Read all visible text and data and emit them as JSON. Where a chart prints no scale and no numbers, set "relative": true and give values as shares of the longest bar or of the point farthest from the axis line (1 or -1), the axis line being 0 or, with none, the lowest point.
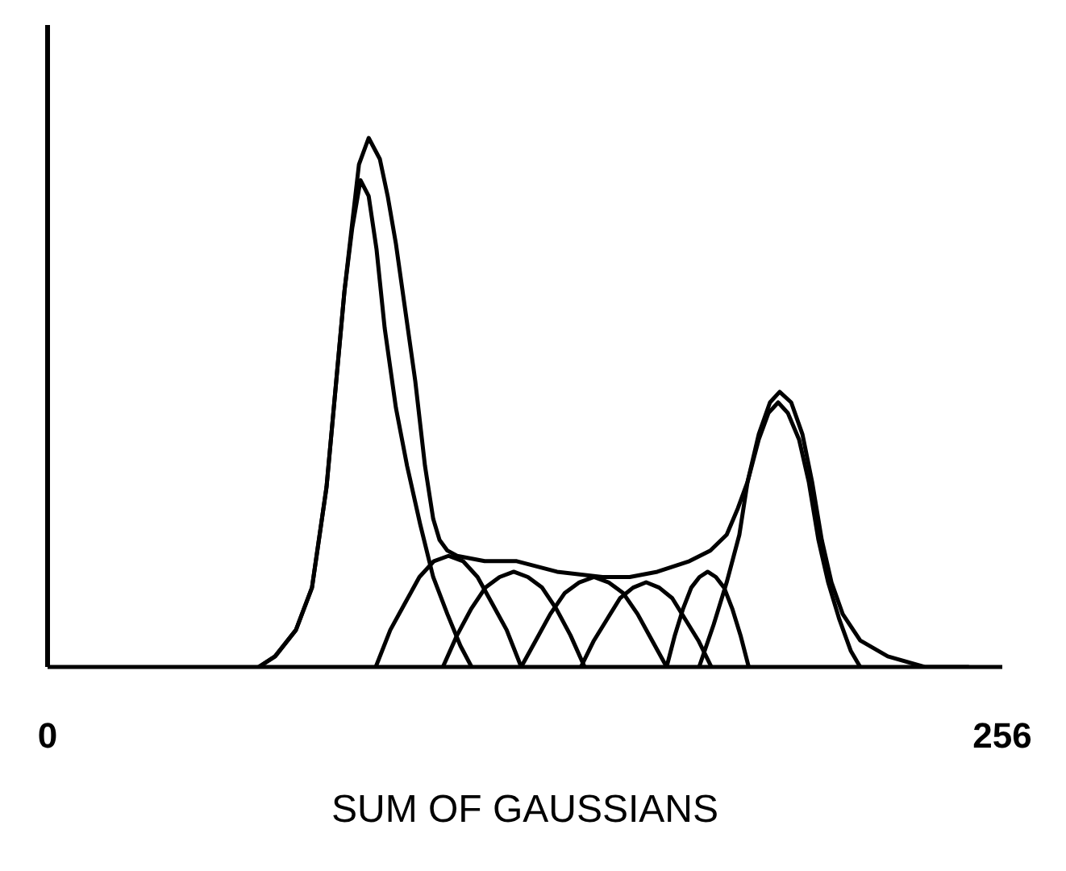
{
  "chart_data": {
    "type": "line",
    "title": "SUM OF GAUSSIANS",
    "relative": true,
    "xlim": [
      0,
      256
    ],
    "xticks": [
      0,
      256
    ],
    "series": [
      {
        "color": "#000000",
        "x": [
          56.6,
          61.0,
          66.6,
          70.9,
          74.8,
          77.4,
          79.6,
          81.7,
          83.5,
          86.1,
          89.1,
          91.2,
          93.4,
          95.6,
          98.6,
          101.2,
          103.4,
          105.1,
          107.2,
          109.8,
          117.2,
          125.8,
          136.6,
          148.8,
          156.1,
          163.5,
          172.1,
          177.7,
          182.1,
          185.1,
          187.7,
          190.7,
          193.7,
          196.3,
          199.4,
          202.4,
          205.0,
          207.6,
          210.2,
          213.2,
          217.9,
          225.3,
          235.2,
          246.9
        ],
        "values": [
          0,
          0.02,
          0.07,
          0.15,
          0.34,
          0.54,
          0.71,
          0.84,
          0.95,
          1.0,
          0.96,
          0.89,
          0.8,
          0.69,
          0.54,
          0.38,
          0.28,
          0.24,
          0.22,
          0.21,
          0.2,
          0.2,
          0.18,
          0.17,
          0.17,
          0.18,
          0.2,
          0.22,
          0.25,
          0.3,
          0.35,
          0.44,
          0.5,
          0.52,
          0.5,
          0.44,
          0.35,
          0.24,
          0.16,
          0.1,
          0.05,
          0.02,
          0.0,
          0
        ]
      },
      {
        "color": "#000000",
        "x": [
          56.6,
          61.0,
          66.6,
          70.9,
          74.8,
          77.4,
          79.6,
          81.7,
          83.9,
          86.1,
          88.2,
          90.4,
          93.4,
          96.4,
          99.9,
          103.4,
          107.2,
          110.7,
          113.7
        ],
        "values": [
          0,
          0.02,
          0.07,
          0.15,
          0.34,
          0.54,
          0.71,
          0.83,
          0.92,
          0.89,
          0.79,
          0.64,
          0.49,
          0.38,
          0.27,
          0.17,
          0.1,
          0.04,
          0
        ]
      },
      {
        "color": "#000000",
        "x": [
          174.7,
          178.6,
          182.1,
          185.5,
          187.7,
          190.7,
          193.3,
          195.9,
          198.5,
          201.5,
          204.1,
          206.7,
          209.3,
          212.3,
          215.4,
          217.9
        ],
        "values": [
          0,
          0.08,
          0.16,
          0.25,
          0.35,
          0.43,
          0.48,
          0.5,
          0.48,
          0.43,
          0.35,
          0.24,
          0.16,
          0.09,
          0.03,
          0
        ]
      },
      {
        "color": "#000000",
        "x": [
          88,
          91.9,
          95.8,
          99.7,
          103.6,
          107.5,
          111.4,
          115.3,
          119.2,
          123.1,
          127
        ],
        "values": [
          0,
          0.07,
          0.12,
          0.17,
          0.2,
          0.21,
          0.2,
          0.17,
          0.12,
          0.07,
          0
        ]
      },
      {
        "color": "#000000",
        "x": [
          106,
          109.8,
          113.6,
          117.4,
          121.2,
          125,
          128.8,
          132.6,
          136.4,
          140.2,
          144
        ],
        "values": [
          0,
          0.06,
          0.11,
          0.15,
          0.17,
          0.18,
          0.17,
          0.15,
          0.11,
          0.06,
          0
        ]
      },
      {
        "color": "#000000",
        "x": [
          127,
          130.9,
          134.8,
          138.7,
          142.6,
          146.5,
          150.4,
          154.3,
          158.2,
          162.1,
          166
        ],
        "values": [
          0,
          0.05,
          0.1,
          0.14,
          0.16,
          0.17,
          0.16,
          0.14,
          0.1,
          0.05,
          0
        ]
      },
      {
        "color": "#000000",
        "x": [
          143,
          146.5,
          150,
          153.5,
          157,
          160.5,
          164,
          167.5,
          171,
          174.5,
          178
        ],
        "values": [
          0,
          0.05,
          0.09,
          0.13,
          0.15,
          0.16,
          0.15,
          0.13,
          0.09,
          0.05,
          0
        ]
      },
      {
        "color": "#000000",
        "x": [
          166,
          168.2,
          170.4,
          172.6,
          174.8,
          177,
          179.2,
          181.4,
          183.6,
          185.8,
          188
        ],
        "values": [
          0,
          0.06,
          0.11,
          0.15,
          0.17,
          0.18,
          0.17,
          0.15,
          0.11,
          0.06,
          0
        ]
      }
    ]
  }
}
